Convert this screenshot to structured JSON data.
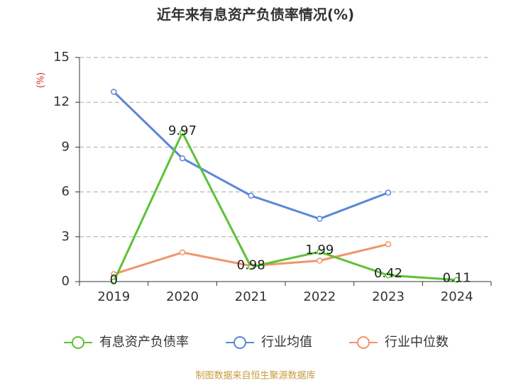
{
  "chart_data": {
    "type": "line",
    "title": "近年来有息资产负债率情况(%)",
    "y_label": "(%)",
    "footer": "制图数据来自恒生聚源数据库",
    "categories": [
      "2019",
      "2020",
      "2021",
      "2022",
      "2023",
      "2024"
    ],
    "series": [
      {
        "name": "有息资产负债率",
        "color": "#5cc234",
        "values": [
          0,
          9.97,
          0.98,
          1.99,
          0.42,
          0.11
        ],
        "data_labels": true
      },
      {
        "name": "行业均值",
        "color": "#5b86d9",
        "values": [
          12.7,
          8.25,
          5.75,
          4.2,
          5.95,
          null
        ]
      },
      {
        "name": "行业中位数",
        "color": "#f0956a",
        "values": [
          0.5,
          1.95,
          1.05,
          1.4,
          2.5,
          null
        ]
      }
    ],
    "ylim": [
      0,
      15
    ],
    "yticks": [
      0,
      3,
      6,
      9,
      12,
      15
    ],
    "grid": true
  }
}
